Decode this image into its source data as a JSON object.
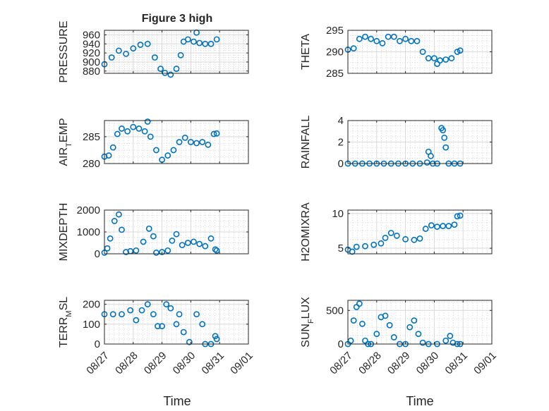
{
  "figure": {
    "title": "Figure 3 high",
    "xlabel": "Time"
  },
  "chart_data": [
    {
      "type": "scatter",
      "ylabel": "PRESSURE",
      "ylim": [
        875,
        970
      ],
      "yticks": [
        "880",
        "900",
        "920",
        "940",
        "960"
      ],
      "ytick_values": [
        880,
        900,
        920,
        940,
        960
      ],
      "xticks": [
        "08/27",
        "08/28",
        "08/29",
        "08/30",
        "08/31",
        "09/01"
      ],
      "xlim": [
        0,
        5
      ],
      "grid": true,
      "color": "#0072BD",
      "x": [
        0,
        0.25,
        0.5,
        0.75,
        1,
        1.25,
        1.5,
        1.75,
        1.95,
        2.1,
        2.3,
        2.5,
        2.65,
        2.75,
        2.9,
        3.1,
        3.2,
        3.3,
        3.5,
        3.7,
        3.9
      ],
      "y": [
        895,
        910,
        925,
        918,
        930,
        938,
        940,
        910,
        885,
        876,
        872,
        885,
        915,
        945,
        950,
        945,
        965,
        942,
        940,
        940,
        950
      ]
    },
    {
      "type": "scatter",
      "ylabel": "THETA",
      "ylim": [
        285,
        295
      ],
      "yticks": [
        "285",
        "290",
        "295"
      ],
      "ytick_values": [
        285,
        290,
        295
      ],
      "xticks": [
        "08/27",
        "08/28",
        "08/29",
        "08/30",
        "08/31",
        "09/01"
      ],
      "xlim": [
        0,
        5
      ],
      "grid": true,
      "color": "#0072BD",
      "x": [
        0,
        0.2,
        0.4,
        0.6,
        0.8,
        1,
        1.2,
        1.4,
        1.6,
        1.8,
        2,
        2.2,
        2.4,
        2.6,
        2.8,
        3,
        3.1,
        3.2,
        3.4,
        3.6,
        3.8,
        3.9
      ],
      "y": [
        290.5,
        290.8,
        293,
        293.5,
        293,
        292.5,
        292,
        293.5,
        293.5,
        292.5,
        293,
        292.5,
        292.5,
        290,
        288.5,
        288.5,
        287.2,
        288,
        288.2,
        288.5,
        290,
        290.3
      ]
    },
    {
      "type": "scatter",
      "ylabel": "AIR_TEMP",
      "ylim": [
        280,
        288
      ],
      "yticks": [
        "280",
        "285"
      ],
      "ytick_values": [
        280,
        285
      ],
      "xticks": [
        "08/27",
        "08/28",
        "08/29",
        "08/30",
        "08/31",
        "09/01"
      ],
      "xlim": [
        0,
        5
      ],
      "grid": true,
      "color": "#0072BD",
      "x": [
        0,
        0.15,
        0.3,
        0.45,
        0.6,
        0.8,
        1,
        1.2,
        1.4,
        1.5,
        1.6,
        1.8,
        2,
        2.2,
        2.4,
        2.6,
        2.8,
        3,
        3.2,
        3.4,
        3.6,
        3.8,
        3.9
      ],
      "y": [
        281.3,
        281.5,
        283,
        285.5,
        286.5,
        286,
        286.8,
        286.5,
        286,
        287.8,
        285,
        282.5,
        280.7,
        281.5,
        282.5,
        284,
        284.8,
        284,
        283.8,
        284,
        283.5,
        285.5,
        285.6
      ]
    },
    {
      "type": "scatter",
      "ylabel": "RAINFALL",
      "ylim": [
        0,
        4
      ],
      "yticks": [
        "0",
        "2",
        "4"
      ],
      "ytick_values": [
        0,
        2,
        4
      ],
      "xticks": [
        "08/27",
        "08/28",
        "08/29",
        "08/30",
        "08/31",
        "09/01"
      ],
      "xlim": [
        0,
        5
      ],
      "grid": true,
      "color": "#0072BD",
      "x": [
        0,
        0.25,
        0.5,
        0.75,
        1,
        1.25,
        1.5,
        1.75,
        2,
        2.25,
        2.5,
        2.75,
        2.8,
        2.88,
        2.95,
        3.1,
        3.25,
        3.3,
        3.35,
        3.4,
        3.5,
        3.7,
        3.9
      ],
      "y": [
        0,
        0,
        0,
        0,
        0,
        0,
        0,
        0,
        0,
        0,
        0,
        0.1,
        1.1,
        0.7,
        0,
        0,
        3.3,
        3.1,
        2.4,
        1.5,
        0,
        0,
        0
      ]
    },
    {
      "type": "scatter",
      "ylabel": "MIXDEPTH",
      "ylim": [
        0,
        2000
      ],
      "yticks": [
        "0",
        "1000",
        "2000"
      ],
      "ytick_values": [
        0,
        1000,
        2000
      ],
      "xticks": [
        "08/27",
        "08/28",
        "08/29",
        "08/30",
        "08/31",
        "09/01"
      ],
      "xlim": [
        0,
        5
      ],
      "grid": true,
      "color": "#0072BD",
      "x": [
        0,
        0.1,
        0.2,
        0.35,
        0.5,
        0.6,
        0.75,
        0.9,
        1.1,
        1.35,
        1.55,
        1.7,
        1.8,
        2,
        2.2,
        2.35,
        2.5,
        2.7,
        2.9,
        3.1,
        3.3,
        3.5,
        3.7,
        3.85,
        3.9
      ],
      "y": [
        50,
        250,
        700,
        1500,
        1800,
        1100,
        80,
        120,
        150,
        550,
        1150,
        800,
        50,
        80,
        150,
        600,
        900,
        400,
        500,
        550,
        450,
        350,
        700,
        200,
        150
      ]
    },
    {
      "type": "scatter",
      "ylabel": "H2OMIXRA",
      "ylim": [
        4.2,
        10.5
      ],
      "yticks": [
        "5",
        "10"
      ],
      "ytick_values": [
        5,
        10
      ],
      "xticks": [
        "08/27",
        "08/28",
        "08/29",
        "08/30",
        "08/31",
        "09/01"
      ],
      "xlim": [
        0,
        5
      ],
      "grid": true,
      "color": "#0072BD",
      "x": [
        0,
        0.15,
        0.3,
        0.6,
        0.9,
        1.15,
        1.3,
        1.5,
        1.7,
        2,
        2.3,
        2.5,
        2.7,
        2.9,
        3.1,
        3.3,
        3.5,
        3.7,
        3.8,
        3.9
      ],
      "y": [
        4.8,
        4.5,
        5.2,
        5.3,
        5.5,
        5.7,
        6.5,
        7.2,
        6.8,
        6.3,
        6.2,
        6.4,
        7.8,
        8.3,
        8.1,
        8.2,
        8.2,
        8.4,
        9.6,
        9.7
      ]
    },
    {
      "type": "scatter",
      "ylabel": "TERR_MSL",
      "ylim": [
        0,
        220
      ],
      "yticks": [
        "0",
        "100",
        "200"
      ],
      "ytick_values": [
        0,
        100,
        200
      ],
      "xticks": [
        "08/27",
        "08/28",
        "08/29",
        "08/30",
        "08/31",
        "09/01"
      ],
      "xlim": [
        0,
        5
      ],
      "grid": true,
      "color": "#0072BD",
      "x": [
        0,
        0.3,
        0.6,
        0.9,
        1.1,
        1.3,
        1.5,
        1.7,
        1.85,
        2,
        2.15,
        2.3,
        2.5,
        2.6,
        2.75,
        2.95,
        3.2,
        3.4,
        3.5,
        3.7,
        3.85,
        3.9
      ],
      "y": [
        150,
        150,
        150,
        170,
        120,
        170,
        200,
        150,
        90,
        90,
        200,
        180,
        100,
        150,
        60,
        10,
        150,
        100,
        0,
        0,
        40,
        25
      ]
    },
    {
      "type": "scatter",
      "ylabel": "SUN_FLUX",
      "ylim": [
        0,
        650
      ],
      "yticks": [
        "0",
        "500"
      ],
      "ytick_values": [
        0,
        500
      ],
      "xticks": [
        "08/27",
        "08/28",
        "08/29",
        "08/30",
        "08/31",
        "09/01"
      ],
      "xlim": [
        0,
        5
      ],
      "grid": true,
      "color": "#0072BD",
      "x": [
        0,
        0.1,
        0.2,
        0.3,
        0.4,
        0.5,
        0.6,
        0.7,
        0.8,
        1,
        1.15,
        1.3,
        1.45,
        1.6,
        1.8,
        2.0,
        2.15,
        2.3,
        2.45,
        2.6,
        2.8,
        3.1,
        3.4,
        3.55,
        3.65,
        3.8,
        3.9
      ],
      "y": [
        0,
        50,
        350,
        550,
        600,
        300,
        50,
        0,
        0,
        150,
        400,
        420,
        280,
        100,
        0,
        0,
        250,
        350,
        150,
        20,
        0,
        0,
        50,
        120,
        20,
        0,
        0
      ]
    }
  ]
}
